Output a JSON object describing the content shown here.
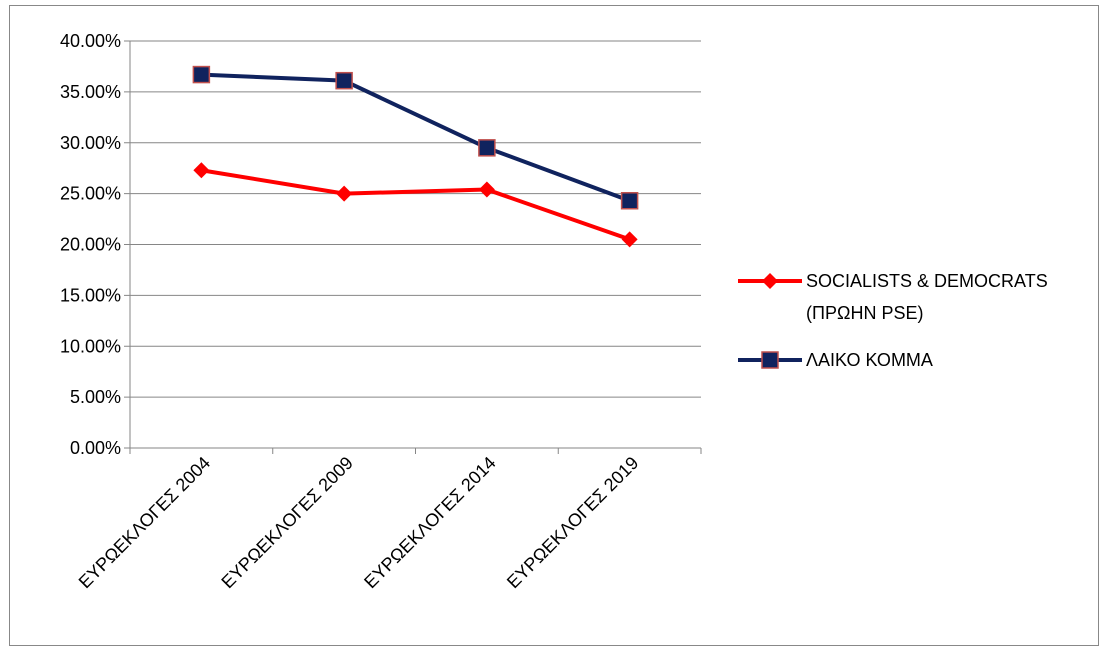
{
  "chart_data": {
    "type": "line",
    "categories": [
      "ΕΥΡΩΕΚΛΟΓΕΣ 2004",
      "ΕΥΡΩΕΚΛΟΓΕΣ 2009",
      "ΕΥΡΩΕΚΛΟΓΕΣ 2014",
      "ΕΥΡΩΕΚΛΟΓΕΣ 2019"
    ],
    "series": [
      {
        "name": "SOCIALISTS & DEMOCRATS (ΠΡΩΗΝ PSE)",
        "legend_lines": [
          "SOCIALISTS & DEMOCRATS",
          "(ΠΡΩΗΝ PSE)"
        ],
        "values": [
          0.273,
          0.25,
          0.254,
          0.205
        ],
        "color": "#ff0000",
        "marker": "diamond"
      },
      {
        "name": "ΛΑΙΚΟ ΚΟΜΜΑ",
        "legend_lines": [
          "ΛΑΙΚΟ ΚΟΜΜΑ"
        ],
        "values": [
          0.367,
          0.361,
          0.295,
          0.243
        ],
        "color": "#10235e",
        "marker": "square",
        "marker_border": "#c0504d"
      }
    ],
    "y_ticks": [
      "0.00%",
      "5.00%",
      "10.00%",
      "15.00%",
      "20.00%",
      "25.00%",
      "30.00%",
      "35.00%",
      "40.00%"
    ],
    "ylim": [
      0,
      0.4
    ],
    "grid": true,
    "legend_position": "right",
    "title": "",
    "xlabel": "",
    "ylabel": ""
  }
}
